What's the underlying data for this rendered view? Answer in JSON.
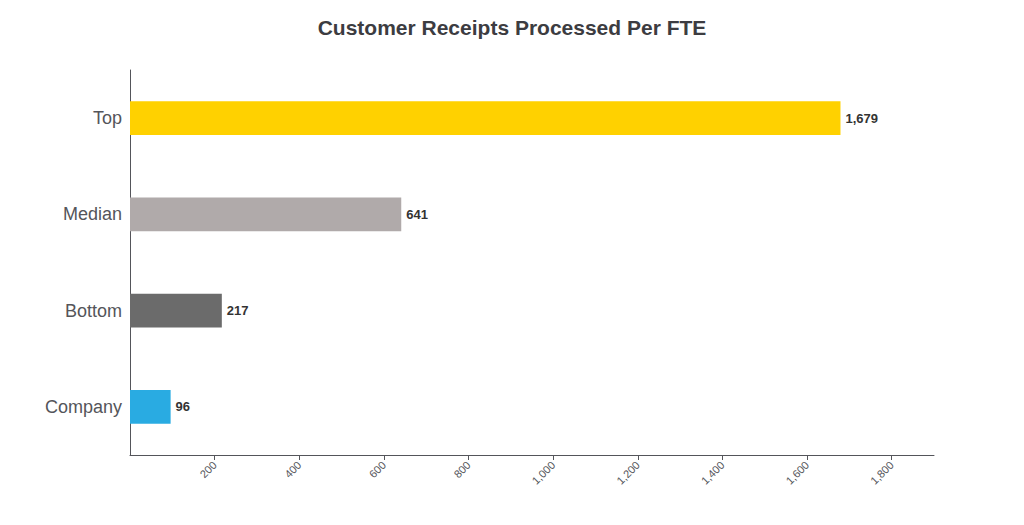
{
  "chart_data": {
    "type": "bar",
    "orientation": "horizontal",
    "title": "Customer Receipts Processed Per FTE",
    "categories": [
      "Company",
      "Bottom",
      "Median",
      "Top"
    ],
    "values": [
      96,
      217,
      641,
      1679
    ],
    "value_labels": [
      "96",
      "217",
      "641",
      "1,679"
    ],
    "colors": [
      "#29ABE2",
      "#6B6B6B",
      "#B0AAAA",
      "#FFD100"
    ],
    "data_labels": true,
    "xlim": [
      0,
      1900
    ],
    "xticks": [
      200,
      400,
      600,
      800,
      {
        "value": 1000,
        "label": "1,000"
      },
      {
        "value": 1200,
        "label": "1,200"
      },
      {
        "value": 1400,
        "label": "1,400"
      },
      {
        "value": 1600,
        "label": "1,600"
      },
      {
        "value": 1800,
        "label": "1,800"
      }
    ],
    "grid": false
  }
}
